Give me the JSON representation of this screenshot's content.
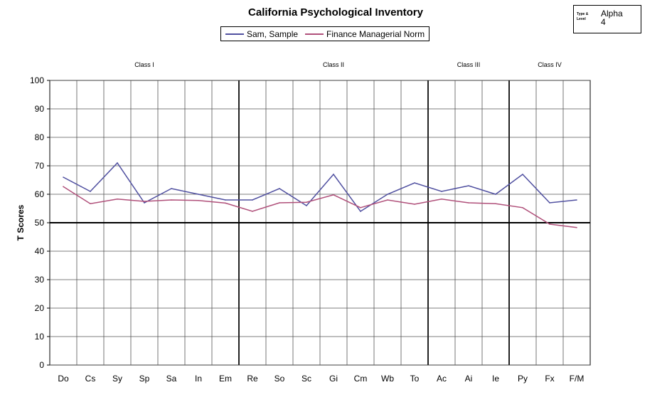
{
  "chart_data": {
    "type": "line",
    "title": "California Psychological Inventory",
    "ylabel": "T Scores",
    "xlabel": "",
    "ylim": [
      0,
      100
    ],
    "yticks": [
      0,
      10,
      20,
      30,
      40,
      50,
      60,
      70,
      80,
      90,
      100
    ],
    "grid": true,
    "legend": "top-center",
    "reference_line": 50,
    "categories": [
      "Do",
      "Cs",
      "Sy",
      "Sp",
      "Sa",
      "In",
      "Em",
      "Re",
      "So",
      "Sc",
      "Gi",
      "Cm",
      "Wb",
      "To",
      "Ac",
      "Ai",
      "Ie",
      "Py",
      "Fx",
      "F/M"
    ],
    "class_dividers_after": [
      "Em",
      "To",
      "Ie"
    ],
    "classes": [
      {
        "label": "Class I",
        "center_between": [
          "Do",
          "Em"
        ]
      },
      {
        "label": "Class II",
        "center_between": [
          "Re",
          "To"
        ]
      },
      {
        "label": "Class III",
        "center_between": [
          "Ac",
          "Ie"
        ]
      },
      {
        "label": "Class IV",
        "center_between": [
          "Py",
          "F/M"
        ]
      }
    ],
    "series": [
      {
        "name": "Sam, Sample",
        "color": "#5050a0",
        "values": [
          66,
          61,
          71,
          57,
          62,
          60,
          58,
          58,
          62,
          56,
          67,
          54,
          60,
          64,
          61,
          63,
          60,
          67,
          57,
          58
        ]
      },
      {
        "name": "Finance Managerial Norm",
        "color": "#b0507a",
        "values": [
          62.7,
          56.7,
          58.3,
          57.5,
          58,
          57.8,
          56.9,
          54,
          57,
          57.2,
          59.8,
          55.3,
          58,
          56.5,
          58.3,
          57,
          56.7,
          55.3,
          49.5,
          48.3
        ]
      }
    ]
  },
  "type_box": {
    "label": "Type & Level",
    "type": "Alpha",
    "level": "4"
  }
}
